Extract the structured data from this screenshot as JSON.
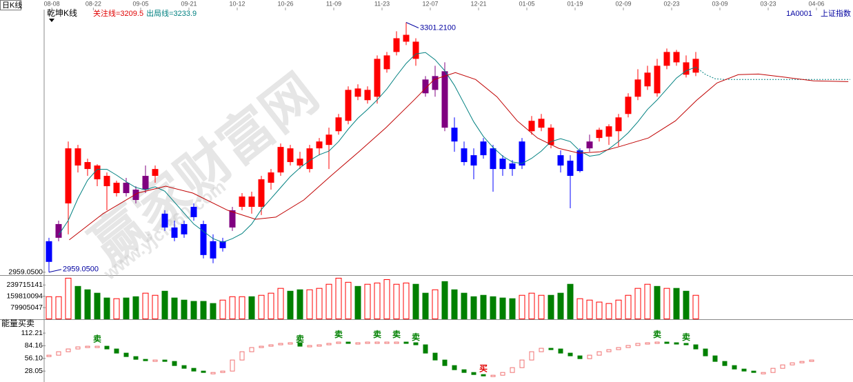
{
  "watermark": {
    "text": "赢家财富网",
    "url": "www.yjcf360.com"
  },
  "chart_data": [
    {
      "type": "candlestick",
      "period": "日K线",
      "title": "乾坤K线",
      "indicators": [
        {
          "label": "关注线=3209.5",
          "color": "#e00000"
        },
        {
          "label": "出局线=3233.9",
          "color": "#008080"
        }
      ],
      "code": "1A0001",
      "name": "上证指数",
      "xlim": [
        -0.5,
        83
      ],
      "xticks": [
        {
          "value": 0.3,
          "label": "08-08"
        },
        {
          "value": 4.6,
          "label": "08-22"
        },
        {
          "value": 9.5,
          "label": "09-05"
        },
        {
          "value": 14.5,
          "label": "09-21"
        },
        {
          "value": 19.5,
          "label": "10-12"
        },
        {
          "value": 24.5,
          "label": "10-26"
        },
        {
          "value": 29.5,
          "label": "11-09"
        },
        {
          "value": 34.5,
          "label": "11-23"
        },
        {
          "value": 39.5,
          "label": "12-07"
        },
        {
          "value": 44.5,
          "label": "12-21"
        },
        {
          "value": 49.5,
          "label": "01-05"
        },
        {
          "value": 54.5,
          "label": "01-19"
        },
        {
          "value": 59.5,
          "label": "02-09"
        },
        {
          "value": 64.5,
          "label": "02-23"
        },
        {
          "value": 69.5,
          "label": "03-09"
        },
        {
          "value": 74.5,
          "label": "03-23"
        },
        {
          "value": 79.5,
          "label": "04-06"
        }
      ],
      "ylim": [
        2956,
        3313
      ],
      "yticks": [
        {
          "value": 2959.05,
          "label": "2959.0500"
        }
      ],
      "open": [
        2973.2,
        3006.2,
        3053.3,
        3128.7,
        3109.9,
        3105.2,
        3091.0,
        3067.4,
        3081.6,
        3072.2,
        3072.2,
        3091.0,
        3039.2,
        3020.3,
        3025.0,
        3048.6,
        3025.0,
        3001.5,
        2992.0,
        3020.3,
        3048.6,
        3062.7,
        3048.6,
        3081.6,
        3095.7,
        3128.7,
        3114.6,
        3100.4,
        3128.7,
        3133.4,
        3152.2,
        3166.4,
        3210.7,
        3194.7,
        3199.4,
        3237.1,
        3260.7,
        3274.8,
        3274.8,
        3223.0,
        3208.8,
        3234.3,
        3157.0,
        3128.7,
        3119.3,
        3138.1,
        3128.7,
        3114.6,
        3108.0,
        3105.2,
        3152.2,
        3157.0,
        3157.0,
        3119.3,
        3111.8,
        3097.6,
        3128.7,
        3142.9,
        3144.7,
        3152.2,
        3175.8,
        3199.4,
        3213.6,
        3241.8,
        3241.8,
        3260.7,
        3246.5,
        3232.4
      ],
      "high": [
        3006.2,
        3029.7,
        3138.1,
        3133.4,
        3114.6,
        3107.0,
        3095.7,
        3084.4,
        3088.2,
        3076.9,
        3105.2,
        3105.2,
        3043.9,
        3029.7,
        3029.7,
        3053.3,
        3029.7,
        3010.9,
        3006.2,
        3048.6,
        3067.4,
        3069.3,
        3091.0,
        3100.4,
        3135.3,
        3133.4,
        3124.0,
        3133.4,
        3142.9,
        3157.0,
        3175.8,
        3213.6,
        3216.4,
        3213.6,
        3256.0,
        3260.7,
        3289.0,
        3301.21,
        3279.5,
        3227.7,
        3241.8,
        3246.5,
        3171.1,
        3138.1,
        3128.7,
        3142.9,
        3133.4,
        3119.3,
        3112.7,
        3142.9,
        3173.0,
        3175.8,
        3161.7,
        3125.9,
        3119.3,
        3128.7,
        3147.5,
        3157.0,
        3161.7,
        3175.8,
        3204.1,
        3237.1,
        3241.8,
        3251.3,
        3265.4,
        3263.5,
        3256.0,
        3260.7
      ],
      "low": [
        2959.05,
        3001.5,
        3010.9,
        3095.7,
        3091.0,
        3076.9,
        3043.9,
        3062.7,
        3062.7,
        3053.3,
        3067.4,
        3081.6,
        3015.6,
        3001.5,
        3006.2,
        3029.7,
        2977.9,
        2971.3,
        2987.3,
        3015.6,
        3043.9,
        3039.2,
        3037.3,
        3072.2,
        3091.0,
        3105.2,
        3100.4,
        3095.7,
        3119.3,
        3100.4,
        3147.5,
        3161.7,
        3194.7,
        3190.0,
        3190.0,
        3232.4,
        3256.0,
        3270.1,
        3241.8,
        3199.4,
        3199.4,
        3152.2,
        3124.0,
        3105.2,
        3086.3,
        3114.6,
        3069.3,
        3091.0,
        3091.0,
        3100.4,
        3147.5,
        3152.2,
        3128.7,
        3095.7,
        3046.7,
        3095.7,
        3124.0,
        3138.1,
        3133.4,
        3131.5,
        3171.1,
        3194.7,
        3208.8,
        3199.4,
        3237.1,
        3241.8,
        3225.8,
        3227.7
      ],
      "close": [
        3001.5,
        3025.0,
        3128.7,
        3105.2,
        3100.4,
        3086.3,
        3076.9,
        3081.6,
        3067.4,
        3058.0,
        3091.0,
        3100.4,
        3020.3,
        3006.2,
        3010.9,
        3034.5,
        2982.6,
        2977.9,
        3001.5,
        3043.9,
        3062.7,
        3048.6,
        3086.3,
        3095.7,
        3130.6,
        3109.9,
        3105.2,
        3128.7,
        3138.1,
        3147.5,
        3171.1,
        3208.8,
        3199.4,
        3208.8,
        3251.3,
        3256.0,
        3279.5,
        3284.2,
        3251.3,
        3204.1,
        3227.7,
        3157.0,
        3138.1,
        3109.9,
        3105.2,
        3119.3,
        3100.4,
        3100.4,
        3100.4,
        3138.1,
        3166.4,
        3169.2,
        3133.4,
        3105.2,
        3091.0,
        3125.9,
        3138.1,
        3154.1,
        3158.9,
        3171.1,
        3199.4,
        3223.0,
        3232.4,
        3204.1,
        3260.7,
        3246.5,
        3229.6,
        3251.3
      ],
      "candle_colors": [
        "#0000ff",
        "#800080",
        "#ff0000",
        "#ff0000",
        "#ff0000",
        "#ff0000",
        "#ff0000",
        "#ff0000",
        "#800080",
        "#800080",
        "#800080",
        "#ff0000",
        "#0000ff",
        "#0000ff",
        "#0000ff",
        "#0000ff",
        "#0000ff",
        "#0000ff",
        "#0000ff",
        "#800080",
        "#ff0000",
        "#ff0000",
        "#ff0000",
        "#ff0000",
        "#ff0000",
        "#ff0000",
        "#ff0000",
        "#ff0000",
        "#ff0000",
        "#ff0000",
        "#ff0000",
        "#ff0000",
        "#ff0000",
        "#ff0000",
        "#ff0000",
        "#ff0000",
        "#ff0000",
        "#ff0000",
        "#ff0000",
        "#800080",
        "#800080",
        "#800080",
        "#0000ff",
        "#0000ff",
        "#0000ff",
        "#0000ff",
        "#0000ff",
        "#0000ff",
        "#0000ff",
        "#0000ff",
        "#ff0000",
        "#ff0000",
        "#ff0000",
        "#0000ff",
        "#0000ff",
        "#0000ff",
        "#800080",
        "#ff0000",
        "#ff0000",
        "#ff0000",
        "#ff0000",
        "#ff0000",
        "#ff0000",
        "#ff0000",
        "#ff0000",
        "#ff0000",
        "#ff0000",
        "#ff0000"
      ],
      "lines": [
        {
          "color": "#008080",
          "values": [
            null,
            3010,
            3030,
            3060,
            3085,
            3100,
            3100,
            3092,
            3083,
            3075,
            3072,
            3076,
            3070,
            3055,
            3040,
            3025,
            3015,
            3005,
            3000,
            3005,
            3012,
            3025,
            3045,
            3060,
            3075,
            3090,
            3102,
            3112,
            3120,
            3125,
            3138,
            3155,
            3170,
            3182,
            3195,
            3210,
            3228,
            3245,
            3258,
            3260,
            3250,
            3235,
            3215,
            3190,
            3165,
            3145,
            3130,
            3118,
            3110,
            3108,
            3115,
            3125,
            3138,
            3142,
            3138,
            3125,
            3118,
            3120,
            3128,
            3138,
            3150,
            3165,
            3182,
            3195,
            3210,
            3225,
            3235,
            3240
          ]
        },
        {
          "color": "#008080",
          "dash": true,
          "x": [
            67,
            68,
            69,
            70,
            83
          ],
          "values": [
            3240,
            3230,
            3224,
            3223,
            3223
          ]
        },
        {
          "color": "#c00000",
          "x": [
            2.1,
            5.6,
            9.2,
            12.1,
            14.9,
            18.5,
            21.4,
            23.5,
            26.4,
            29.2,
            32.1,
            34.9,
            37.8,
            39.9,
            42.1,
            44.2,
            46.4,
            48.5,
            50.6,
            52.8,
            54.9,
            57.1,
            59.2,
            62.1,
            64.9,
            67.1,
            69.2,
            71.4,
            73.5,
            76.4,
            79.2,
            82.8
          ],
          "values": [
            3003.3,
            3039.2,
            3067.4,
            3076.9,
            3067.4,
            3043.9,
            3031.6,
            3034.5,
            3058.0,
            3091.0,
            3124.0,
            3157.0,
            3194.7,
            3223.0,
            3232.4,
            3223.0,
            3199.4,
            3166.4,
            3142.9,
            3128.7,
            3122.1,
            3124.0,
            3131.5,
            3142.9,
            3166.4,
            3194.7,
            3218.3,
            3229.6,
            3230.5,
            3225.8,
            3221.1,
            3220.1
          ]
        }
      ],
      "annotations": [
        {
          "label": "3301.2100",
          "x": 37,
          "value": 3301.21
        },
        {
          "label": "2959.0500",
          "x": 0,
          "value": 2959.05
        }
      ]
    },
    {
      "type": "bar",
      "ylim": [
        0,
        290000000
      ],
      "yticks": [
        79905047,
        159810094,
        239715141
      ],
      "up_color": "#ff0000",
      "down_color": "#008000",
      "values": [
        157000000,
        157000000,
        288000000,
        230000000,
        206000000,
        182000000,
        148000000,
        143000000,
        148000000,
        157000000,
        182000000,
        167000000,
        196000000,
        148000000,
        133000000,
        124000000,
        124000000,
        109000000,
        133000000,
        157000000,
        157000000,
        157000000,
        167000000,
        182000000,
        216000000,
        196000000,
        206000000,
        206000000,
        216000000,
        245000000,
        288000000,
        259000000,
        230000000,
        245000000,
        254000000,
        278000000,
        245000000,
        254000000,
        245000000,
        182000000,
        206000000,
        264000000,
        206000000,
        182000000,
        157000000,
        167000000,
        157000000,
        148000000,
        143000000,
        167000000,
        182000000,
        167000000,
        167000000,
        182000000,
        245000000,
        143000000,
        133000000,
        119000000,
        109000000,
        133000000,
        167000000,
        216000000,
        245000000,
        230000000,
        216000000,
        216000000,
        196000000,
        167000000
      ]
    },
    {
      "type": "line",
      "title": "能量买卖",
      "ylim": [
        10,
        120
      ],
      "yticks": [
        112.21,
        84.16,
        {
          "value": 56.1,
          "label": "56.10"
        },
        28.05
      ],
      "up_color": "#f07070",
      "down_color": "#008000",
      "values": [
        63.3,
        71.0,
        77.1,
        81.7,
        83.2,
        83.2,
        77.1,
        67.9,
        60.2,
        54.1,
        52.6,
        52.6,
        49.5,
        40.3,
        34.2,
        28.1,
        25.0,
        25.0,
        28.1,
        52.6,
        71.0,
        80.2,
        83.2,
        86.3,
        89.4,
        90.9,
        83.2,
        84.8,
        86.3,
        89.4,
        92.4,
        90.9,
        90.9,
        92.4,
        92.4,
        92.4,
        92.4,
        90.9,
        86.3,
        67.9,
        52.6,
        40.3,
        31.1,
        25.0,
        20.4,
        17.3,
        18.9,
        25.0,
        35.7,
        52.6,
        71.0,
        78.6,
        77.1,
        67.9,
        61.8,
        55.6,
        63.3,
        71.0,
        75.6,
        80.2,
        84.8,
        89.4,
        90.9,
        92.4,
        90.9,
        89.4,
        86.3,
        77.1,
        61.8,
        49.5,
        40.3,
        32.6,
        28.1,
        25.0,
        25.0,
        34.2,
        41.8,
        46.4,
        49.5,
        52.6
      ],
      "signals": [
        {
          "label": "卖",
          "x": 5,
          "color": "#008000"
        },
        {
          "label": "卖",
          "x": 26,
          "color": "#008000"
        },
        {
          "label": "卖",
          "x": 30,
          "color": "#008000"
        },
        {
          "label": "卖",
          "x": 34,
          "color": "#008000"
        },
        {
          "label": "卖",
          "x": 36,
          "color": "#008000"
        },
        {
          "label": "卖",
          "x": 38,
          "color": "#008000"
        },
        {
          "label": "买",
          "x": 45,
          "color": "#e00000"
        },
        {
          "label": "卖",
          "x": 63,
          "color": "#008000"
        },
        {
          "label": "卖",
          "x": 66,
          "color": "#008000"
        }
      ]
    }
  ]
}
